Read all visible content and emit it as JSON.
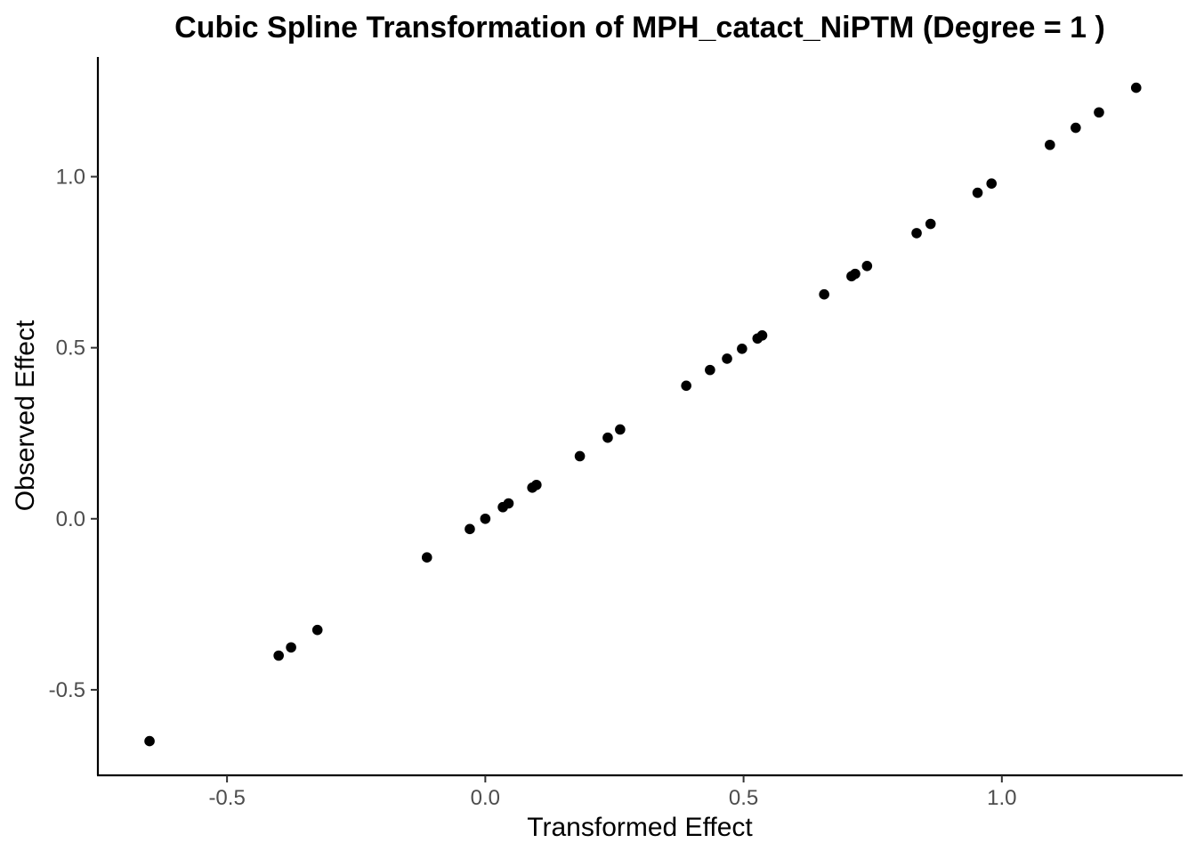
{
  "chart_data": {
    "type": "scatter",
    "title": "Cubic Spline Transformation of MPH_catact_NiPTM (Degree = 1 )",
    "xlabel": "Transformed Effect",
    "ylabel": "Observed Effect",
    "xlim": [
      -0.75,
      1.35
    ],
    "ylim": [
      -0.75,
      1.35
    ],
    "x_ticks": [
      -0.5,
      0.0,
      0.5,
      1.0
    ],
    "x_tick_labels": [
      "-0.5",
      "0.0",
      "0.5",
      "1.0"
    ],
    "y_ticks": [
      -0.5,
      0.0,
      0.5,
      1.0
    ],
    "y_tick_labels": [
      "-0.5",
      "0.0",
      "0.5",
      "1.0"
    ],
    "grid": false,
    "legend": "none",
    "point_color": "#000000",
    "series": [
      {
        "x": [
          -0.65,
          -0.4,
          -0.376,
          -0.325,
          -0.113,
          -0.03,
          0.0,
          0.034,
          0.045,
          0.091,
          0.099,
          0.183,
          0.237,
          0.261,
          0.389,
          0.435,
          0.468,
          0.497,
          0.527,
          0.536,
          0.656,
          0.709,
          0.716,
          0.739,
          0.835,
          0.862,
          0.953,
          0.98,
          1.093,
          1.143,
          1.188,
          1.26
        ],
        "y": [
          -0.65,
          -0.4,
          -0.376,
          -0.325,
          -0.113,
          -0.03,
          0.0,
          0.034,
          0.045,
          0.091,
          0.099,
          0.183,
          0.237,
          0.261,
          0.389,
          0.435,
          0.468,
          0.497,
          0.527,
          0.536,
          0.656,
          0.709,
          0.716,
          0.739,
          0.835,
          0.862,
          0.953,
          0.98,
          1.093,
          1.143,
          1.188,
          1.26
        ]
      }
    ]
  }
}
